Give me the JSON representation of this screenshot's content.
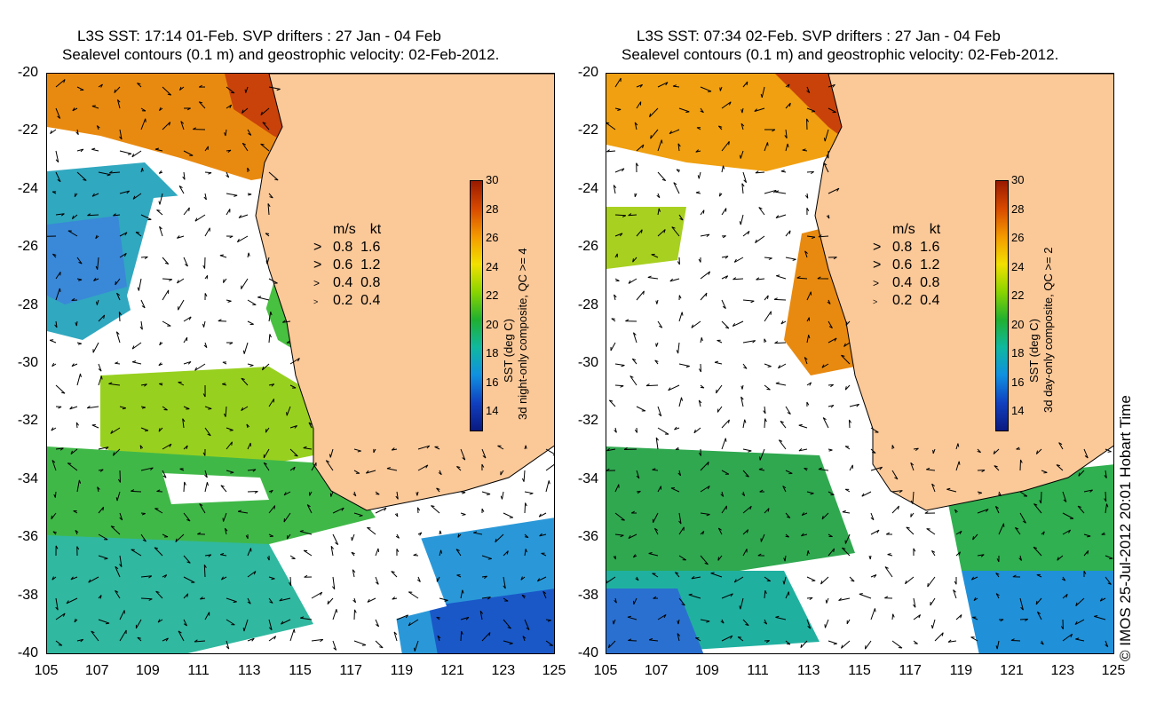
{
  "panels": [
    {
      "title_line1": "L3S SST: 17:14 01-Feb. SVP drifters : 27 Jan - 04 Feb",
      "title_line2": "Sealevel contours (0.1 m) and geostrophic velocity: 02-Feb-2012.",
      "colorbar_label1": "SST (deg C)",
      "colorbar_label2": "3d night-only composite, QC >= 4"
    },
    {
      "title_line1": "L3S SST: 07:34 02-Feb. SVP drifters : 27 Jan - 04 Feb",
      "title_line2": "Sealevel contours (0.1 m) and geostrophic velocity: 02-Feb-2012.",
      "colorbar_label1": "SST (deg C)",
      "colorbar_label2": "3d day-only composite, QC >= 2"
    }
  ],
  "axes": {
    "lat_ticks": [
      "-20",
      "-22",
      "-24",
      "-26",
      "-28",
      "-30",
      "-32",
      "-34",
      "-36",
      "-38",
      "-40"
    ],
    "lon_ticks": [
      "105",
      "107",
      "109",
      "111",
      "113",
      "115",
      "117",
      "119",
      "121",
      "123",
      "125"
    ]
  },
  "legend": {
    "header_ms": "m/s",
    "header_kt": "kt",
    "rows": [
      {
        "ms": "0.8",
        "kt": "1.6"
      },
      {
        "ms": "0.6",
        "kt": "1.2"
      },
      {
        "ms": "0.4",
        "kt": "0.8"
      },
      {
        "ms": "0.2",
        "kt": "0.4"
      }
    ]
  },
  "colorbar": {
    "ticks": [
      "30",
      "28",
      "26",
      "24",
      "22",
      "20",
      "18",
      "16",
      "14"
    ],
    "colors": [
      "#9a1a00",
      "#d84a00",
      "#f49a00",
      "#f2e000",
      "#8ad400",
      "#20b030",
      "#10b8a0",
      "#1090e0",
      "#1040c0",
      "#0a1a80"
    ]
  },
  "land_color": "#fbc898",
  "credit": "© IMOS 25-Jul-2012 20:01 Hobart Time"
}
